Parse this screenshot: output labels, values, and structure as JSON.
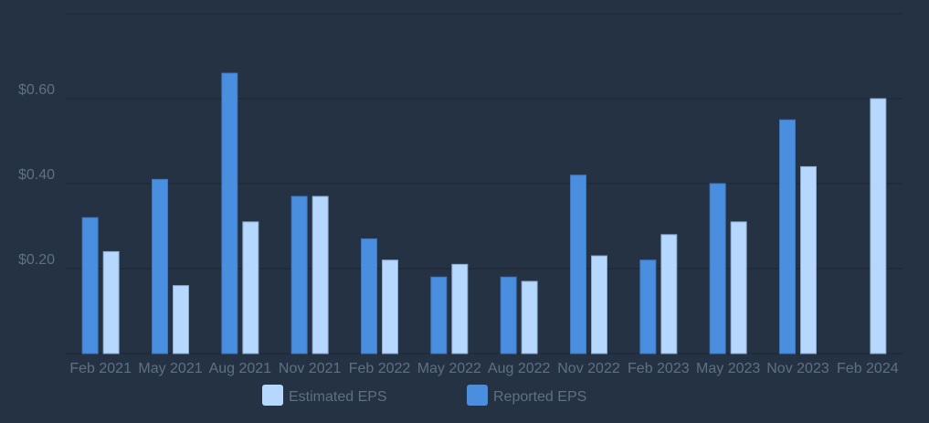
{
  "chart_data": {
    "type": "bar",
    "title": "",
    "xlabel": "",
    "ylabel": "",
    "ylim": [
      0,
      0.8
    ],
    "grid": true,
    "legend_position": "bottom",
    "yticks": [
      {
        "value": 0.2,
        "label": "$0.20"
      },
      {
        "value": 0.4,
        "label": "$0.40"
      },
      {
        "value": 0.6,
        "label": "$0.60"
      }
    ],
    "categories": [
      "Feb 2021",
      "May 2021",
      "Aug 2021",
      "Nov 2021",
      "Feb 2022",
      "May 2022",
      "Aug 2022",
      "Nov 2022",
      "Feb 2023",
      "May 2023",
      "Nov 2023",
      "Feb 2024"
    ],
    "series": [
      {
        "name": "Reported EPS",
        "color": "#4a8ee0",
        "values": [
          0.32,
          0.41,
          0.66,
          0.37,
          0.27,
          0.18,
          0.18,
          0.42,
          0.22,
          0.4,
          0.55,
          null
        ]
      },
      {
        "name": "Estimated EPS",
        "color": "#b6d8ff",
        "values": [
          0.24,
          0.16,
          0.31,
          0.37,
          0.22,
          0.21,
          0.17,
          0.23,
          0.28,
          0.31,
          0.44,
          0.6
        ]
      }
    ],
    "legend": [
      {
        "label": "Estimated EPS",
        "color": "#b6d8ff"
      },
      {
        "label": "Reported EPS",
        "color": "#4a8ee0"
      }
    ]
  },
  "colors": {
    "background": "#253244",
    "gridline": "#1e2a3a",
    "text": "#5e7085"
  }
}
